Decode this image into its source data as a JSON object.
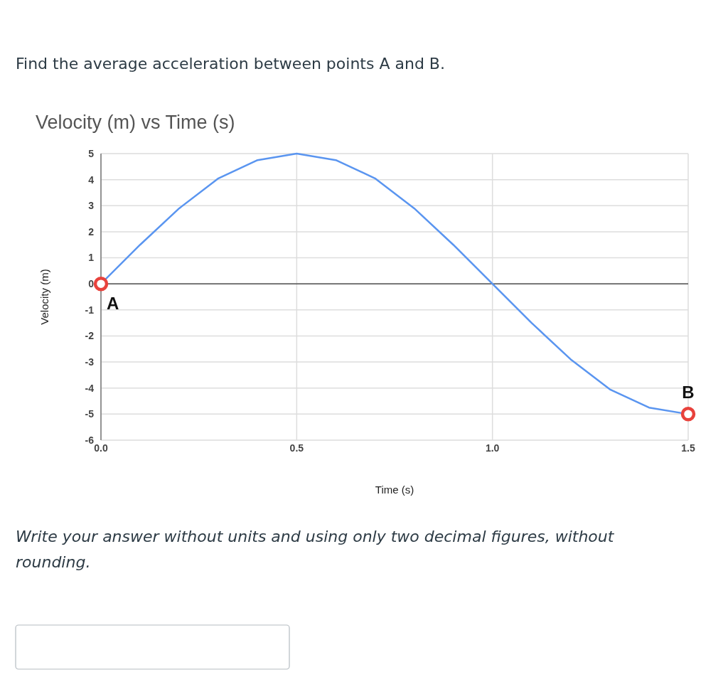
{
  "chart_data": {
    "type": "line",
    "title": "Velocity (m) vs Time (s)",
    "xlabel": "Time (s)",
    "ylabel": "Velocity (m)",
    "x": [
      0,
      0.1,
      0.2,
      0.3,
      0.4,
      0.5,
      0.6,
      0.7,
      0.8,
      0.9,
      1.0,
      1.1,
      1.2,
      1.3,
      1.4,
      1.5
    ],
    "series": [
      {
        "color": "#5a95f0",
        "values": [
          0,
          1.5,
          2.9,
          4.05,
          4.75,
          5,
          4.75,
          4.05,
          2.9,
          1.5,
          0,
          -1.5,
          -2.9,
          -4.05,
          -4.75,
          -5
        ]
      },
      {
        "type": "scatter",
        "color": "#e8423c",
        "marker": "circle",
        "x": [
          0,
          1.5
        ],
        "values": [
          0,
          -5
        ]
      }
    ],
    "xlim": [
      0,
      1.5
    ],
    "xticks": [
      {
        "value": 0,
        "label": "0.0"
      },
      {
        "value": 0.5,
        "label": "0.5"
      },
      {
        "value": 1,
        "label": "1.0"
      },
      {
        "value": 1.5,
        "label": "1.5"
      }
    ],
    "ylim": [
      -6,
      5
    ],
    "yticks": [
      5,
      4,
      3,
      2,
      1,
      0,
      -1,
      -2,
      -3,
      -4,
      -5,
      -6
    ],
    "grid": true,
    "annotations": [
      "Find the average acceleration between points A and B.",
      "Write your answer without units and using only two decimal figures, without rounding.",
      {
        "text": "A",
        "x": 0,
        "y": 0
      },
      {
        "text": "B",
        "x": 1.5,
        "y": -5
      }
    ]
  }
}
